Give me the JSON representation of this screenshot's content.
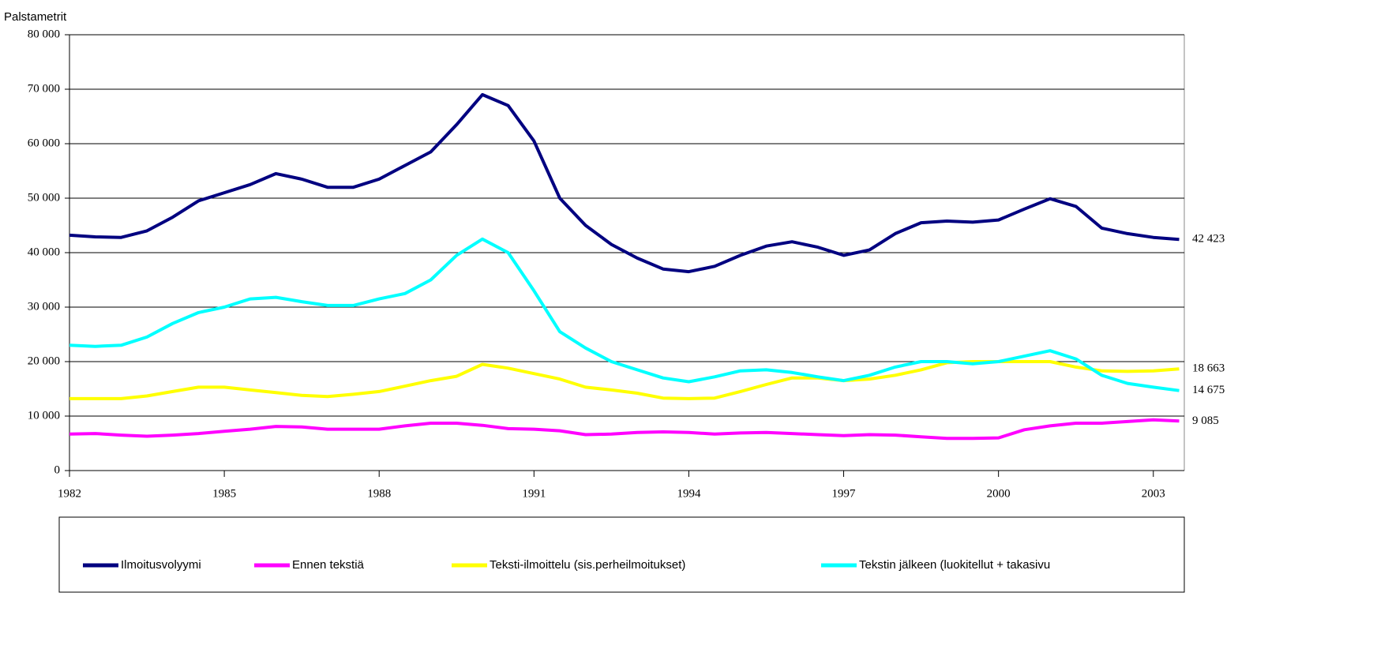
{
  "chart_data": {
    "type": "line",
    "y_label": "Palstametrit",
    "x": [
      1982,
      1982.5,
      1983,
      1983.5,
      1984,
      1984.5,
      1985,
      1985.5,
      1986,
      1986.5,
      1987,
      1987.5,
      1988,
      1988.5,
      1989,
      1989.5,
      1990,
      1990.5,
      1991,
      1991.5,
      1992,
      1992.5,
      1993,
      1993.5,
      1994,
      1994.5,
      1995,
      1995.5,
      1996,
      1996.5,
      1997,
      1997.5,
      1998,
      1998.5,
      1999,
      1999.5,
      2000,
      2000.5,
      2001,
      2001.5,
      2002,
      2002.5,
      2003,
      2003.5
    ],
    "xlim": [
      1982,
      2003.6
    ],
    "xticks": [
      1982,
      1985,
      1988,
      1991,
      1994,
      1997,
      2000,
      2003
    ],
    "ylim": [
      0,
      80000
    ],
    "yticks": [
      0,
      {
        "value": 10000,
        "label": "10 000"
      },
      {
        "value": 20000,
        "label": "20 000"
      },
      {
        "value": 30000,
        "label": "30 000"
      },
      {
        "value": 40000,
        "label": "40 000"
      },
      {
        "value": 50000,
        "label": "50 000"
      },
      {
        "value": 60000,
        "label": "60 000"
      },
      {
        "value": 70000,
        "label": "70 000"
      },
      {
        "value": 80000,
        "label": "80 000"
      }
    ],
    "grid": true,
    "legend": "bottom",
    "series": [
      {
        "name": "Ilmoitusvolyymi",
        "color": "#000080",
        "values": [
          43200,
          42900,
          42800,
          44000,
          46500,
          49500,
          51000,
          52500,
          54500,
          53500,
          52000,
          52000,
          53500,
          56000,
          58500,
          63500,
          69000,
          67000,
          60500,
          50000,
          45000,
          41500,
          39000,
          37000,
          36500,
          37500,
          39500,
          41200,
          42000,
          41000,
          39500,
          40500,
          43500,
          45500,
          45800,
          45600,
          46000,
          48000,
          49900,
          48500,
          44500,
          43500,
          42800,
          42423
        ],
        "value_labels": [
          null,
          null,
          null,
          null,
          null,
          null,
          null,
          null,
          null,
          null,
          null,
          null,
          null,
          null,
          null,
          null,
          null,
          null,
          null,
          null,
          null,
          null,
          null,
          null,
          null,
          null,
          null,
          null,
          null,
          null,
          null,
          null,
          null,
          null,
          null,
          null,
          null,
          null,
          null,
          null,
          null,
          null,
          null,
          "42 423"
        ]
      },
      {
        "name": "Ennen tekstiä",
        "color": "#ff00ff",
        "values": [
          6700,
          6800,
          6500,
          6300,
          6500,
          6800,
          7200,
          7600,
          8100,
          8000,
          7600,
          7600,
          7600,
          8200,
          8700,
          8700,
          8300,
          7700,
          7600,
          7300,
          6600,
          6700,
          7000,
          7100,
          7000,
          6700,
          6900,
          7000,
          6800,
          6600,
          6400,
          6600,
          6500,
          6200,
          5900,
          5900,
          6000,
          7500,
          8200,
          8700,
          8700,
          9000,
          9300,
          9085
        ],
        "value_labels": [
          null,
          null,
          null,
          null,
          null,
          null,
          null,
          null,
          null,
          null,
          null,
          null,
          null,
          null,
          null,
          null,
          null,
          null,
          null,
          null,
          null,
          null,
          null,
          null,
          null,
          null,
          null,
          null,
          null,
          null,
          null,
          null,
          null,
          null,
          null,
          null,
          null,
          null,
          null,
          null,
          null,
          null,
          null,
          "9 085"
        ]
      },
      {
        "name": "Teksti-ilmoittelu (sis.perheilmoitukset)",
        "color": "#ffff00",
        "values": [
          13200,
          13200,
          13200,
          13700,
          14500,
          15300,
          15300,
          14800,
          14300,
          13800,
          13600,
          14000,
          14500,
          15500,
          16500,
          17300,
          19500,
          18800,
          17800,
          16800,
          15300,
          14800,
          14200,
          13300,
          13200,
          13300,
          14500,
          15800,
          17000,
          17000,
          16500,
          16800,
          17500,
          18500,
          19800,
          20000,
          20000,
          20000,
          20000,
          19000,
          18300,
          18200,
          18300,
          18663
        ],
        "value_labels": [
          null,
          null,
          null,
          null,
          null,
          null,
          null,
          null,
          null,
          null,
          null,
          null,
          null,
          null,
          null,
          null,
          null,
          null,
          null,
          null,
          null,
          null,
          null,
          null,
          null,
          null,
          null,
          null,
          null,
          null,
          null,
          null,
          null,
          null,
          null,
          null,
          null,
          null,
          null,
          null,
          null,
          null,
          null,
          "18 663"
        ]
      },
      {
        "name": "Tekstin jälkeen (luokitellut + takasivu",
        "color": "#00ffff",
        "values": [
          23000,
          22800,
          23000,
          24500,
          27000,
          29000,
          30000,
          31500,
          31800,
          31000,
          30300,
          30300,
          31500,
          32500,
          35000,
          39500,
          42500,
          40000,
          33000,
          25500,
          22500,
          20000,
          18500,
          17000,
          16300,
          17200,
          18300,
          18500,
          18000,
          17200,
          16500,
          17500,
          19000,
          20000,
          20000,
          19600,
          20000,
          21000,
          22000,
          20500,
          17500,
          16000,
          15300,
          14675
        ],
        "value_labels": [
          null,
          null,
          null,
          null,
          null,
          null,
          null,
          null,
          null,
          null,
          null,
          null,
          null,
          null,
          null,
          null,
          null,
          null,
          null,
          null,
          null,
          null,
          null,
          null,
          null,
          null,
          null,
          null,
          null,
          null,
          null,
          null,
          null,
          null,
          null,
          null,
          null,
          null,
          null,
          null,
          null,
          null,
          null,
          "14 675"
        ]
      }
    ]
  }
}
